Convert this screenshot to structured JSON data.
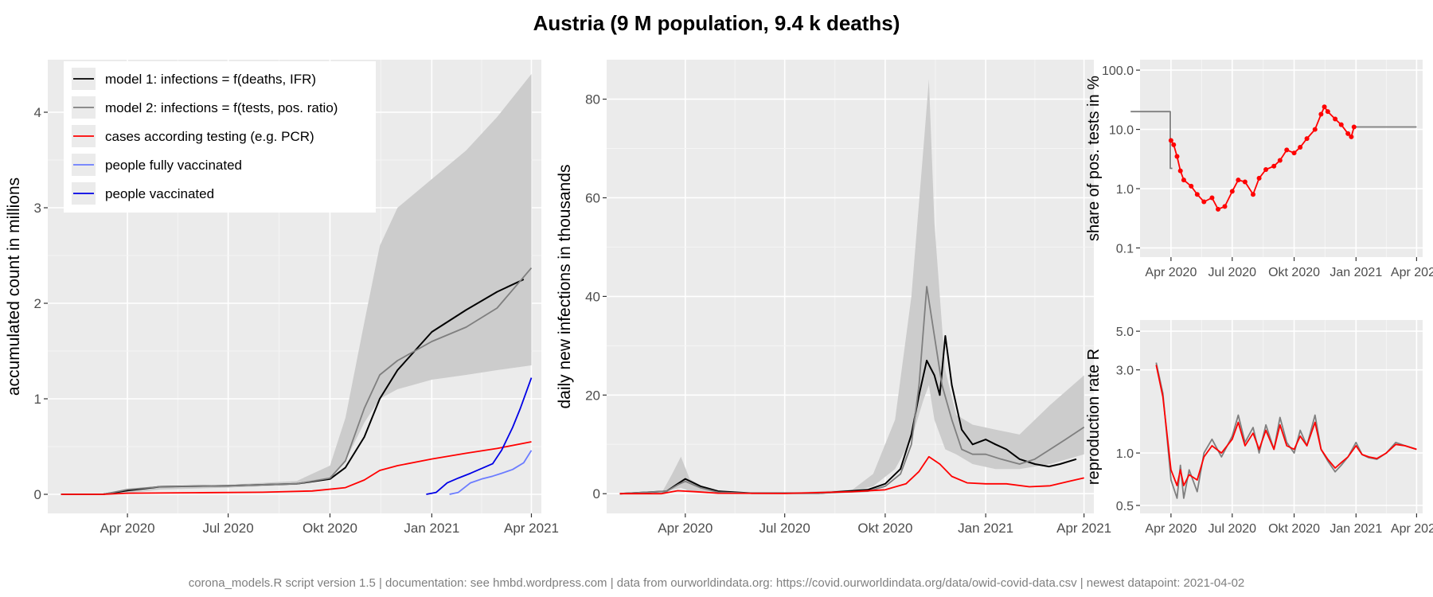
{
  "title": "Austria (9 M population, 9.4 k deaths)",
  "caption": "corona_models.R script version 1.5 | documentation: see hmbd.wordpress.com | data from ourworldindata.org: https://covid.ourworldindata.org/data/owid-covid-data.csv | newest datapoint: 2021-04-02",
  "colors": {
    "panel_bg": "#ebebeb",
    "grid_major": "#ffffff",
    "grid_minor": "#f5f5f5",
    "band": "#cccccc",
    "model1": "#000000",
    "model2": "#7f7f7f",
    "cases": "#ff0000",
    "fully_vaccinated": "#6b7cff",
    "vaccinated": "#0000e6",
    "axis_text": "#4d4d4d"
  },
  "chart_data": [
    {
      "id": "accumulated",
      "type": "line",
      "ylabel": "accumulated count in millions",
      "xlabel": "",
      "xticks": [
        "Apr 2020",
        "Jul 2020",
        "Okt 2020",
        "Jan 2021",
        "Apr 2021"
      ],
      "yticks": [
        0,
        1,
        2,
        3,
        4
      ],
      "ylim": [
        -0.2,
        4.55
      ],
      "legend_position": "top-left",
      "legend": [
        {
          "key": "model1",
          "label": "model 1: infections = f(deaths, IFR)"
        },
        {
          "key": "model2",
          "label": "model 2: infections = f(tests, pos. ratio)"
        },
        {
          "key": "cases",
          "label": "cases according testing (e.g. PCR)"
        },
        {
          "key": "fully_vaccinated",
          "label": "people fully vaccinated"
        },
        {
          "key": "vaccinated",
          "label": "people vaccinated"
        }
      ],
      "band": {
        "x": [
          "2020-02-01",
          "2020-03-10",
          "2020-04-01",
          "2020-05-01",
          "2020-07-01",
          "2020-09-01",
          "2020-10-01",
          "2020-10-15",
          "2020-11-01",
          "2020-11-15",
          "2020-12-01",
          "2021-01-01",
          "2021-02-01",
          "2021-03-01",
          "2021-04-01"
        ],
        "lo": [
          0,
          0,
          0.01,
          0.05,
          0.07,
          0.1,
          0.17,
          0.35,
          0.75,
          1.0,
          1.1,
          1.2,
          1.25,
          1.3,
          1.35
        ],
        "hi": [
          0,
          0,
          0.03,
          0.08,
          0.1,
          0.14,
          0.3,
          0.8,
          1.8,
          2.6,
          3.0,
          3.3,
          3.6,
          3.95,
          4.4
        ]
      },
      "series": [
        {
          "key": "model1",
          "x": [
            "2020-02-01",
            "2020-03-10",
            "2020-04-01",
            "2020-05-01",
            "2020-07-01",
            "2020-09-01",
            "2020-10-01",
            "2020-10-15",
            "2020-11-01",
            "2020-11-15",
            "2020-12-01",
            "2021-01-01",
            "2021-02-01",
            "2021-03-01",
            "2021-03-25"
          ],
          "y": [
            0,
            0,
            0.04,
            0.08,
            0.09,
            0.11,
            0.16,
            0.28,
            0.6,
            1.0,
            1.3,
            1.7,
            1.93,
            2.12,
            2.25
          ]
        },
        {
          "key": "model2",
          "x": [
            "2020-02-01",
            "2020-03-10",
            "2020-04-01",
            "2020-05-01",
            "2020-07-01",
            "2020-09-01",
            "2020-10-01",
            "2020-10-15",
            "2020-11-01",
            "2020-11-15",
            "2020-12-01",
            "2021-01-01",
            "2021-02-01",
            "2021-03-01",
            "2021-04-01"
          ],
          "y": [
            0,
            0,
            0.05,
            0.08,
            0.09,
            0.11,
            0.17,
            0.35,
            0.9,
            1.25,
            1.4,
            1.6,
            1.75,
            1.95,
            2.37
          ]
        },
        {
          "key": "cases",
          "x": [
            "2020-02-01",
            "2020-03-10",
            "2020-04-01",
            "2020-06-01",
            "2020-08-01",
            "2020-09-15",
            "2020-10-15",
            "2020-11-01",
            "2020-11-15",
            "2020-12-01",
            "2021-01-01",
            "2021-02-01",
            "2021-03-01",
            "2021-04-01"
          ],
          "y": [
            0,
            0,
            0.012,
            0.017,
            0.022,
            0.035,
            0.07,
            0.15,
            0.25,
            0.3,
            0.37,
            0.43,
            0.48,
            0.55
          ]
        },
        {
          "key": "vaccinated",
          "x": [
            "2020-12-27",
            "2021-01-05",
            "2021-01-15",
            "2021-01-25",
            "2021-02-05",
            "2021-02-15",
            "2021-02-25",
            "2021-03-05",
            "2021-03-15",
            "2021-03-22",
            "2021-04-01"
          ],
          "y": [
            0,
            0.02,
            0.12,
            0.17,
            0.22,
            0.27,
            0.32,
            0.46,
            0.7,
            0.9,
            1.22
          ]
        },
        {
          "key": "fully_vaccinated",
          "x": [
            "2021-01-17",
            "2021-01-25",
            "2021-02-05",
            "2021-02-15",
            "2021-02-25",
            "2021-03-05",
            "2021-03-15",
            "2021-03-25",
            "2021-04-01"
          ],
          "y": [
            0,
            0.02,
            0.12,
            0.16,
            0.19,
            0.22,
            0.26,
            0.33,
            0.46
          ]
        }
      ]
    },
    {
      "id": "daily",
      "type": "line",
      "ylabel": "daily new infections in thousands",
      "xlabel": "",
      "xticks": [
        "Apr 2020",
        "Jul 2020",
        "Okt 2020",
        "Jan 2021",
        "Apr 2021"
      ],
      "yticks": [
        0,
        20,
        40,
        60,
        80
      ],
      "ylim": [
        -4,
        88
      ],
      "band": {
        "x": [
          "2020-02-01",
          "2020-03-10",
          "2020-03-20",
          "2020-03-28",
          "2020-04-05",
          "2020-04-20",
          "2020-05-15",
          "2020-07-01",
          "2020-09-01",
          "2020-09-20",
          "2020-10-10",
          "2020-10-25",
          "2020-11-05",
          "2020-11-10",
          "2020-11-15",
          "2020-11-25",
          "2020-12-05",
          "2020-12-20",
          "2021-01-10",
          "2021-02-01",
          "2021-03-01",
          "2021-04-01"
        ],
        "lo": [
          0,
          0,
          0.8,
          1.2,
          0.5,
          0.2,
          0,
          0,
          0.5,
          1.5,
          5,
          11,
          19,
          22,
          15,
          9,
          8,
          6,
          5,
          5,
          6,
          8
        ],
        "hi": [
          0,
          0,
          4,
          7.5,
          3,
          1,
          0.3,
          0.2,
          0.8,
          4,
          15,
          40,
          70,
          84,
          55,
          25,
          16,
          14,
          13,
          12,
          18,
          24
        ]
      },
      "series": [
        {
          "key": "model1",
          "x": [
            "2020-02-01",
            "2020-03-15",
            "2020-03-25",
            "2020-04-01",
            "2020-04-15",
            "2020-05-01",
            "2020-06-01",
            "2020-08-01",
            "2020-09-15",
            "2020-10-01",
            "2020-10-15",
            "2020-10-25",
            "2020-11-01",
            "2020-11-08",
            "2020-11-15",
            "2020-11-20",
            "2020-11-25",
            "2020-12-01",
            "2020-12-10",
            "2020-12-20",
            "2021-01-01",
            "2021-01-10",
            "2021-01-20",
            "2021-02-01",
            "2021-02-15",
            "2021-02-28",
            "2021-03-10",
            "2021-03-25"
          ],
          "y": [
            0,
            0.5,
            2,
            3,
            1.5,
            0.5,
            0.1,
            0.1,
            0.8,
            2,
            5,
            12,
            20,
            27,
            24,
            20,
            32,
            22,
            13,
            10,
            11,
            10,
            9,
            7,
            6,
            5.5,
            6,
            7
          ]
        },
        {
          "key": "model2",
          "x": [
            "2020-02-01",
            "2020-03-15",
            "2020-03-25",
            "2020-04-01",
            "2020-04-15",
            "2020-05-01",
            "2020-06-01",
            "2020-08-01",
            "2020-09-15",
            "2020-10-01",
            "2020-10-15",
            "2020-10-25",
            "2020-11-01",
            "2020-11-08",
            "2020-11-15",
            "2020-11-22",
            "2020-12-01",
            "2020-12-10",
            "2020-12-20",
            "2021-01-01",
            "2021-01-15",
            "2021-02-01",
            "2021-02-15",
            "2021-03-01",
            "2021-03-15",
            "2021-04-01"
          ],
          "y": [
            0,
            0.5,
            1.8,
            2.5,
            1.2,
            0.3,
            0.1,
            0.1,
            0.5,
            1.5,
            4,
            10,
            22,
            42,
            32,
            22,
            15,
            9,
            8,
            8,
            7,
            6,
            7,
            9,
            11,
            13.5
          ]
        },
        {
          "key": "cases",
          "x": [
            "2020-02-01",
            "2020-03-10",
            "2020-03-25",
            "2020-04-10",
            "2020-05-01",
            "2020-07-01",
            "2020-09-01",
            "2020-10-01",
            "2020-10-20",
            "2020-11-01",
            "2020-11-10",
            "2020-11-20",
            "2020-12-01",
            "2020-12-15",
            "2021-01-01",
            "2021-01-20",
            "2021-02-10",
            "2021-03-01",
            "2021-03-20",
            "2021-04-01"
          ],
          "y": [
            0,
            0,
            0.6,
            0.4,
            0.1,
            0.05,
            0.4,
            0.8,
            2,
            4.5,
            7.5,
            6,
            3.5,
            2.2,
            2,
            2,
            1.4,
            1.6,
            2.6,
            3.2
          ]
        }
      ]
    },
    {
      "id": "pos_share",
      "type": "line",
      "ylabel": "share of pos. tests in %",
      "xlabel": "",
      "yscale": "log",
      "xticks": [
        "Apr 2020",
        "Jul 2020",
        "Okt 2020",
        "Jan 2021",
        "Apr 2021"
      ],
      "yticks": [
        "0.1",
        "1.0",
        "10.0",
        "100.0"
      ],
      "ylim": [
        0.07,
        150
      ],
      "series": [
        {
          "key": "model2",
          "x": [
            "2020-02-01",
            "2020-03-31",
            "2020-03-31",
            "2020-04-03"
          ],
          "y": [
            20,
            20,
            2.2,
            2.2
          ]
        },
        {
          "key": "model2",
          "x": [
            "2021-01-01",
            "2021-04-01"
          ],
          "y": [
            11,
            11
          ]
        },
        {
          "key": "cases",
          "marker": "dot",
          "x": [
            "2020-04-01",
            "2020-04-05",
            "2020-04-10",
            "2020-04-15",
            "2020-04-20",
            "2020-05-01",
            "2020-05-10",
            "2020-05-20",
            "2020-06-01",
            "2020-06-10",
            "2020-06-20",
            "2020-07-01",
            "2020-07-10",
            "2020-07-20",
            "2020-08-01",
            "2020-08-10",
            "2020-08-20",
            "2020-09-01",
            "2020-09-10",
            "2020-09-20",
            "2020-10-01",
            "2020-10-10",
            "2020-10-20",
            "2020-11-01",
            "2020-11-10",
            "2020-11-15",
            "2020-11-20",
            "2020-12-01",
            "2020-12-10",
            "2020-12-20",
            "2020-12-25",
            "2020-12-29"
          ],
          "y": [
            6.5,
            5.5,
            3.5,
            2.0,
            1.4,
            1.1,
            0.8,
            0.6,
            0.7,
            0.45,
            0.5,
            0.9,
            1.4,
            1.3,
            0.8,
            1.5,
            2.1,
            2.4,
            3.0,
            4.5,
            4.0,
            5.0,
            7.0,
            10.0,
            18.0,
            24.0,
            20.0,
            15.0,
            12.0,
            8.5,
            7.5,
            11.0
          ]
        }
      ]
    },
    {
      "id": "r_rate",
      "type": "line",
      "ylabel": "reproduction rate R",
      "xlabel": "",
      "yscale": "log",
      "xticks": [
        "Apr 2020",
        "Jul 2020",
        "Okt 2020",
        "Jan 2021",
        "Apr 2021"
      ],
      "yticks": [
        "0.5",
        "1.0",
        "3.0",
        "5.0"
      ],
      "ylim": [
        0.45,
        5.8
      ],
      "series": [
        {
          "key": "model2",
          "x": [
            "2020-03-10",
            "2020-03-20",
            "2020-04-01",
            "2020-04-10",
            "2020-04-15",
            "2020-04-20",
            "2020-04-28",
            "2020-05-10",
            "2020-05-20",
            "2020-06-01",
            "2020-06-15",
            "2020-07-01",
            "2020-07-10",
            "2020-07-20",
            "2020-08-01",
            "2020-08-10",
            "2020-08-20",
            "2020-09-01",
            "2020-09-10",
            "2020-09-20",
            "2020-10-01",
            "2020-10-10",
            "2020-10-20",
            "2020-11-01",
            "2020-11-10",
            "2020-11-20",
            "2020-12-01",
            "2020-12-10",
            "2020-12-20",
            "2021-01-01",
            "2021-01-10",
            "2021-01-20",
            "2021-02-01",
            "2021-02-15",
            "2021-03-01",
            "2021-03-15",
            "2021-04-01"
          ],
          "y": [
            3.3,
            2.2,
            0.7,
            0.55,
            0.85,
            0.55,
            0.8,
            0.6,
            1.0,
            1.2,
            0.95,
            1.25,
            1.65,
            1.15,
            1.4,
            1.0,
            1.45,
            1.05,
            1.6,
            1.15,
            1.0,
            1.35,
            1.1,
            1.65,
            1.05,
            0.9,
            0.78,
            0.85,
            0.95,
            1.15,
            0.98,
            0.94,
            0.92,
            1.0,
            1.15,
            1.1,
            1.05
          ]
        },
        {
          "key": "cases",
          "x": [
            "2020-03-10",
            "2020-03-20",
            "2020-04-01",
            "2020-04-10",
            "2020-04-15",
            "2020-04-20",
            "2020-04-28",
            "2020-05-10",
            "2020-05-20",
            "2020-06-01",
            "2020-06-15",
            "2020-07-01",
            "2020-07-10",
            "2020-07-20",
            "2020-08-01",
            "2020-08-10",
            "2020-08-20",
            "2020-09-01",
            "2020-09-10",
            "2020-09-20",
            "2020-10-01",
            "2020-10-10",
            "2020-10-20",
            "2020-11-01",
            "2020-11-10",
            "2020-11-20",
            "2020-12-01",
            "2020-12-10",
            "2020-12-20",
            "2021-01-01",
            "2021-01-10",
            "2021-01-20",
            "2021-02-01",
            "2021-02-15",
            "2021-03-01",
            "2021-03-15",
            "2021-04-01"
          ],
          "y": [
            3.2,
            2.1,
            0.8,
            0.65,
            0.8,
            0.65,
            0.75,
            0.7,
            0.95,
            1.1,
            1.0,
            1.2,
            1.5,
            1.1,
            1.3,
            1.05,
            1.35,
            1.05,
            1.45,
            1.1,
            1.05,
            1.25,
            1.1,
            1.5,
            1.05,
            0.92,
            0.82,
            0.88,
            0.95,
            1.1,
            0.98,
            0.95,
            0.93,
            1.0,
            1.12,
            1.1,
            1.05
          ]
        }
      ]
    }
  ]
}
